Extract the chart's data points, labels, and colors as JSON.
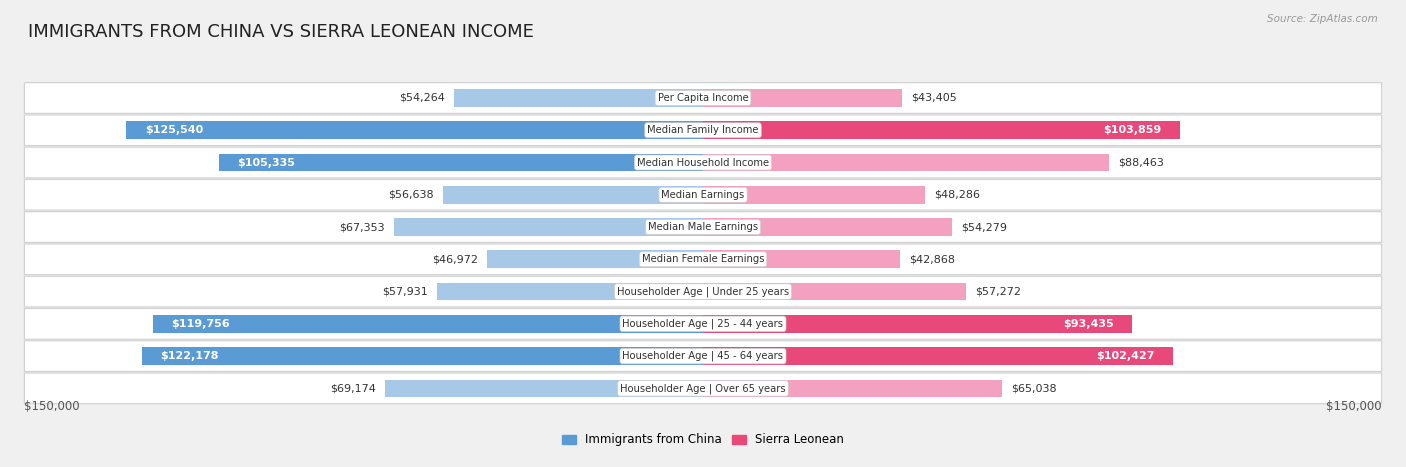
{
  "title": "IMMIGRANTS FROM CHINA VS SIERRA LEONEAN INCOME",
  "source": "Source: ZipAtlas.com",
  "categories": [
    "Per Capita Income",
    "Median Family Income",
    "Median Household Income",
    "Median Earnings",
    "Median Male Earnings",
    "Median Female Earnings",
    "Householder Age | Under 25 years",
    "Householder Age | 25 - 44 years",
    "Householder Age | 45 - 64 years",
    "Householder Age | Over 65 years"
  ],
  "china_values": [
    54264,
    125540,
    105335,
    56638,
    67353,
    46972,
    57931,
    119756,
    122178,
    69174
  ],
  "sierra_values": [
    43405,
    103859,
    88463,
    48286,
    54279,
    42868,
    57272,
    93435,
    102427,
    65038
  ],
  "china_labels": [
    "$54,264",
    "$125,540",
    "$105,335",
    "$56,638",
    "$67,353",
    "$46,972",
    "$57,931",
    "$119,756",
    "$122,178",
    "$69,174"
  ],
  "sierra_labels": [
    "$43,405",
    "$103,859",
    "$88,463",
    "$48,286",
    "$54,279",
    "$42,868",
    "$57,272",
    "$93,435",
    "$102,427",
    "$65,038"
  ],
  "china_color_light": "#a8c8e8",
  "china_color_dark": "#5b9bd5",
  "sierra_color_light": "#f4a0c0",
  "sierra_color_dark": "#e8497a",
  "max_value": 150000,
  "xlabel_left": "$150,000",
  "xlabel_right": "$150,000",
  "legend_china": "Immigrants from China",
  "legend_sierra": "Sierra Leonean",
  "background_color": "#f0f0f0",
  "row_bg_color": "#ffffff",
  "title_fontsize": 13,
  "bar_height": 0.55,
  "china_threshold": 90000,
  "sierra_threshold": 90000
}
